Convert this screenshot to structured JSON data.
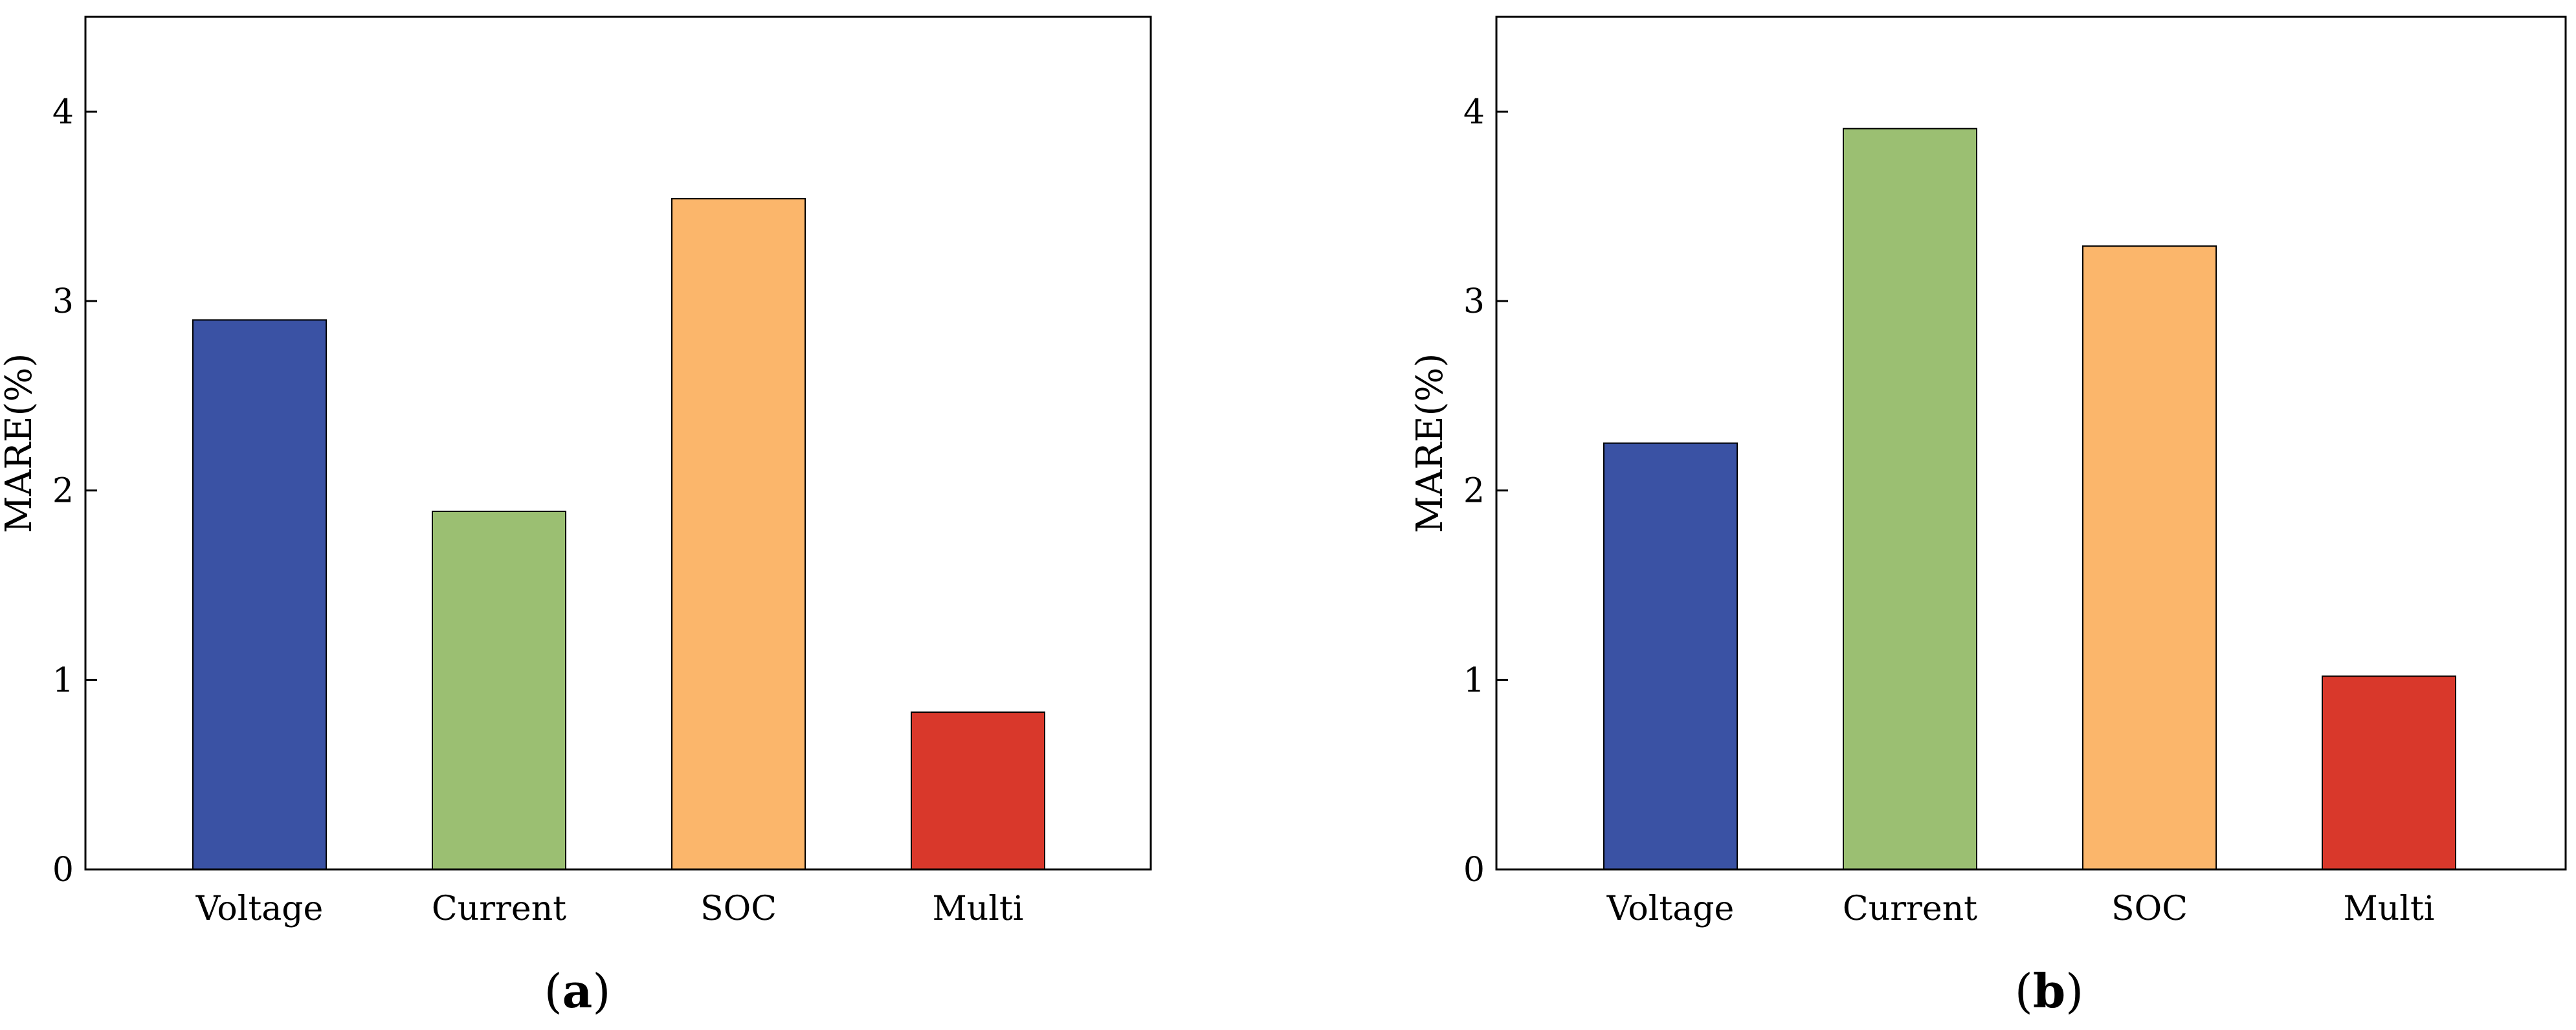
{
  "chart_data": [
    {
      "type": "bar",
      "panel_label": "a",
      "categories": [
        "Voltage",
        "Current",
        "SOC",
        "Multi"
      ],
      "values": [
        2.9,
        1.89,
        3.54,
        0.83
      ],
      "colors": [
        "#3a52a4",
        "#9bbf72",
        "#fbb66b",
        "#d9382b"
      ],
      "ylabel": "MARE(%)",
      "ylim": [
        0,
        4.5
      ],
      "yticks": [
        0,
        1,
        2,
        3,
        4
      ],
      "grid": false,
      "legend": "none"
    },
    {
      "type": "bar",
      "panel_label": "b",
      "categories": [
        "Voltage",
        "Current",
        "SOC",
        "Multi"
      ],
      "values": [
        2.25,
        3.91,
        3.29,
        1.02
      ],
      "colors": [
        "#3a52a4",
        "#9bbf72",
        "#fbb66b",
        "#d9382b"
      ],
      "ylabel": "MARE(%)",
      "ylim": [
        0,
        4.5
      ],
      "yticks": [
        0,
        1,
        2,
        3,
        4
      ],
      "grid": false,
      "legend": "none"
    }
  ]
}
